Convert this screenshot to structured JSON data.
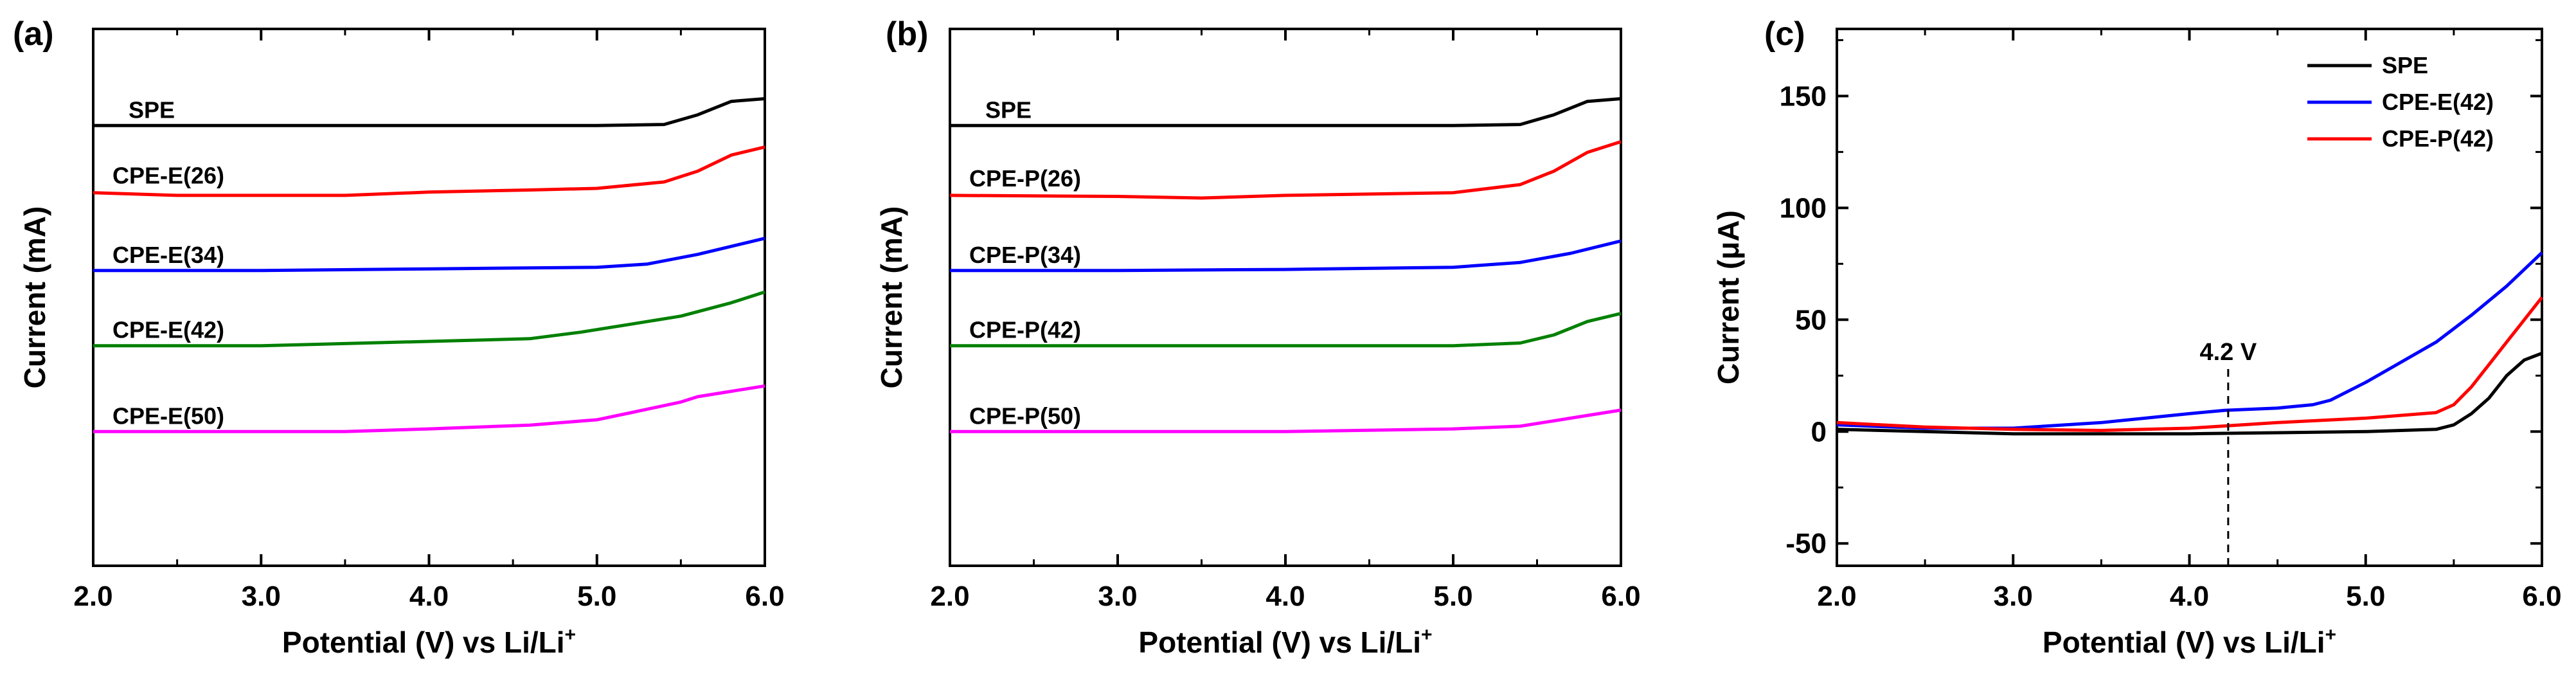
{
  "chart_data": [
    {
      "panel": "(a)",
      "type": "line",
      "xlabel": "Potential (V) vs  Li/Li",
      "xlabel_sup": "+",
      "ylabel": "Current (mA)",
      "xlim": [
        2.0,
        6.0
      ],
      "xticks": [
        "2.0",
        "3.0",
        "4.0",
        "5.0",
        "6.0"
      ],
      "ylim": [
        0,
        100
      ],
      "yticks": [],
      "series": [
        {
          "name": "SPE",
          "color": "#000000",
          "points": [
            [
              2.0,
              82
            ],
            [
              3.0,
              82
            ],
            [
              4.0,
              82
            ],
            [
              5.0,
              82
            ],
            [
              5.4,
              82.2
            ],
            [
              5.6,
              84
            ],
            [
              5.8,
              86.5
            ],
            [
              6.0,
              87
            ]
          ]
        },
        {
          "name": "CPE-E(26)",
          "color": "#ff0000",
          "points": [
            [
              2.0,
              69.5
            ],
            [
              2.5,
              69
            ],
            [
              3.0,
              69
            ],
            [
              3.5,
              69
            ],
            [
              4.0,
              69.6
            ],
            [
              4.6,
              70
            ],
            [
              5.0,
              70.3
            ],
            [
              5.4,
              71.5
            ],
            [
              5.6,
              73.5
            ],
            [
              5.8,
              76.5
            ],
            [
              6.0,
              78
            ]
          ]
        },
        {
          "name": "CPE-E(34)",
          "color": "#0000ff",
          "points": [
            [
              2.0,
              55
            ],
            [
              3.0,
              55
            ],
            [
              4.0,
              55.3
            ],
            [
              5.0,
              55.6
            ],
            [
              5.3,
              56.2
            ],
            [
              5.6,
              58
            ],
            [
              5.8,
              59.5
            ],
            [
              6.0,
              61
            ]
          ]
        },
        {
          "name": "CPE-E(42)",
          "color": "#008000",
          "points": [
            [
              2.0,
              41
            ],
            [
              3.0,
              41
            ],
            [
              4.0,
              41.8
            ],
            [
              4.6,
              42.3
            ],
            [
              4.9,
              43.5
            ],
            [
              5.2,
              45
            ],
            [
              5.5,
              46.5
            ],
            [
              5.8,
              49
            ],
            [
              6.0,
              51
            ]
          ]
        },
        {
          "name": "CPE-E(50)",
          "color": "#ff00ff",
          "points": [
            [
              2.0,
              25
            ],
            [
              3.0,
              25
            ],
            [
              3.5,
              25
            ],
            [
              4.0,
              25.5
            ],
            [
              4.6,
              26.2
            ],
            [
              5.0,
              27.2
            ],
            [
              5.2,
              28.5
            ],
            [
              5.5,
              30.5
            ],
            [
              5.6,
              31.5
            ],
            [
              5.8,
              32.5
            ],
            [
              6.0,
              33.5
            ]
          ]
        }
      ]
    },
    {
      "panel": "(b)",
      "type": "line",
      "xlabel": "Potential (V) vs  Li/Li",
      "xlabel_sup": "+",
      "ylabel": "Current (mA)",
      "xlim": [
        2.0,
        6.0
      ],
      "xticks": [
        "2.0",
        "3.0",
        "4.0",
        "5.0",
        "6.0"
      ],
      "ylim": [
        0,
        100
      ],
      "yticks": [],
      "series": [
        {
          "name": "SPE",
          "color": "#000000",
          "points": [
            [
              2.0,
              82
            ],
            [
              3.0,
              82
            ],
            [
              4.0,
              82
            ],
            [
              5.0,
              82
            ],
            [
              5.4,
              82.2
            ],
            [
              5.6,
              84
            ],
            [
              5.8,
              86.5
            ],
            [
              6.0,
              87
            ]
          ]
        },
        {
          "name": "CPE-P(26)",
          "color": "#ff0000",
          "points": [
            [
              2.0,
              69
            ],
            [
              3.0,
              68.8
            ],
            [
              3.5,
              68.5
            ],
            [
              4.0,
              69
            ],
            [
              5.0,
              69.5
            ],
            [
              5.4,
              71
            ],
            [
              5.6,
              73.5
            ],
            [
              5.8,
              77
            ],
            [
              6.0,
              79
            ]
          ]
        },
        {
          "name": "CPE-P(34)",
          "color": "#0000ff",
          "points": [
            [
              2.0,
              55
            ],
            [
              3.0,
              55
            ],
            [
              4.0,
              55.2
            ],
            [
              5.0,
              55.6
            ],
            [
              5.4,
              56.5
            ],
            [
              5.7,
              58.2
            ],
            [
              6.0,
              60.5
            ]
          ]
        },
        {
          "name": "CPE-P(42)",
          "color": "#008000",
          "points": [
            [
              2.0,
              41
            ],
            [
              3.0,
              41
            ],
            [
              4.0,
              41
            ],
            [
              5.0,
              41
            ],
            [
              5.4,
              41.5
            ],
            [
              5.6,
              43
            ],
            [
              5.8,
              45.5
            ],
            [
              6.0,
              47
            ]
          ]
        },
        {
          "name": "CPE-P(50)",
          "color": "#ff00ff",
          "points": [
            [
              2.0,
              25
            ],
            [
              3.0,
              25
            ],
            [
              4.0,
              25
            ],
            [
              5.0,
              25.5
            ],
            [
              5.4,
              26
            ],
            [
              5.7,
              27.5
            ],
            [
              6.0,
              29
            ]
          ]
        }
      ]
    },
    {
      "panel": "(c)",
      "type": "line",
      "xlabel": "Potential (V) vs  Li/Li",
      "xlabel_sup": "+",
      "ylabel": "Current (μA)",
      "xlim": [
        2.0,
        6.0
      ],
      "ylim": [
        -60,
        180
      ],
      "xticks": [
        "2.0",
        "3.0",
        "4.0",
        "5.0",
        "6.0"
      ],
      "yticks": [
        "-50",
        "0",
        "50",
        "100",
        "150"
      ],
      "legend_position": "top-right",
      "annotation": {
        "text": "4.2 V",
        "x": 4.22
      },
      "series": [
        {
          "name": "SPE",
          "color": "#000000",
          "points": [
            [
              2.0,
              1
            ],
            [
              2.5,
              0
            ],
            [
              3.0,
              -1
            ],
            [
              4.0,
              -1
            ],
            [
              5.0,
              0
            ],
            [
              5.4,
              1
            ],
            [
              5.5,
              3
            ],
            [
              5.6,
              8
            ],
            [
              5.7,
              15
            ],
            [
              5.8,
              25
            ],
            [
              5.9,
              32
            ],
            [
              6.0,
              35
            ]
          ]
        },
        {
          "name": "CPE-E(42)",
          "color": "#0000ff",
          "points": [
            [
              2.0,
              3
            ],
            [
              2.5,
              1.5
            ],
            [
              3.0,
              1.5
            ],
            [
              3.5,
              4
            ],
            [
              4.0,
              8
            ],
            [
              4.2,
              9.5
            ],
            [
              4.5,
              10.5
            ],
            [
              4.7,
              12
            ],
            [
              4.8,
              14
            ],
            [
              5.0,
              22
            ],
            [
              5.2,
              31
            ],
            [
              5.4,
              40
            ],
            [
              5.6,
              52
            ],
            [
              5.8,
              65
            ],
            [
              6.0,
              80
            ]
          ]
        },
        {
          "name": "CPE-P(42)",
          "color": "#ff0000",
          "points": [
            [
              2.0,
              4
            ],
            [
              2.5,
              2
            ],
            [
              3.0,
              1
            ],
            [
              3.5,
              0.5
            ],
            [
              4.0,
              1.5
            ],
            [
              4.5,
              4
            ],
            [
              5.0,
              6
            ],
            [
              5.4,
              8.5
            ],
            [
              5.5,
              12
            ],
            [
              5.6,
              20
            ],
            [
              5.7,
              30
            ],
            [
              5.8,
              40
            ],
            [
              5.9,
              50
            ],
            [
              6.0,
              60
            ]
          ]
        }
      ]
    }
  ]
}
